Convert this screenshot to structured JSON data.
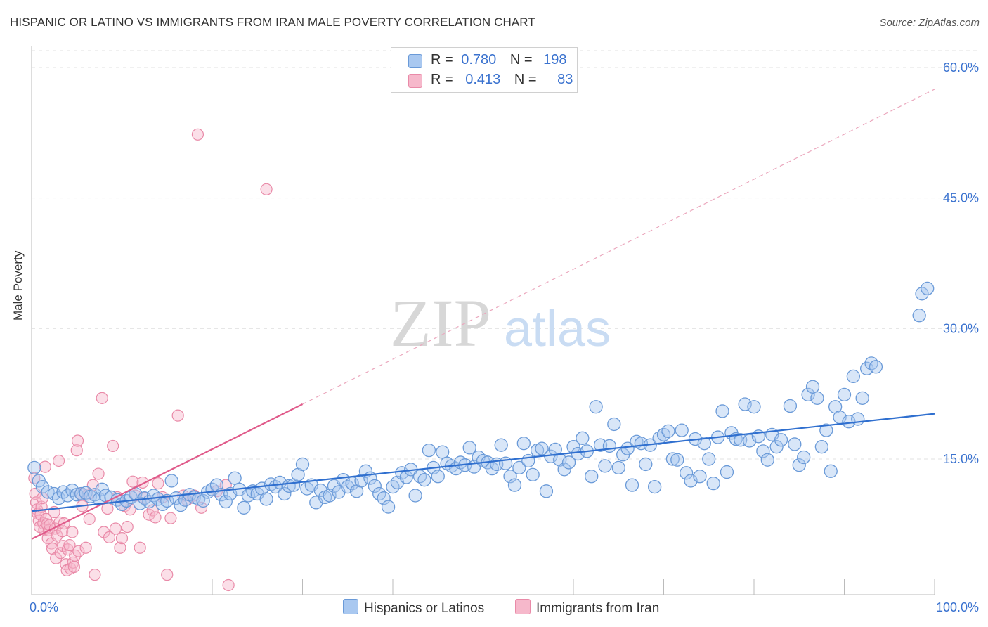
{
  "title": "HISPANIC OR LATINO VS IMMIGRANTS FROM IRAN MALE POVERTY CORRELATION CHART",
  "source": "Source: ZipAtlas.com",
  "watermark": {
    "zip": "ZIP",
    "atlas": "atlas"
  },
  "colors": {
    "blue_fill": "#a9c8f0",
    "blue_stroke": "#6a9ad8",
    "blue_line": "#2f6fcf",
    "pink_fill": "#f6b8cb",
    "pink_stroke": "#e98aa8",
    "pink_line": "#e05a8a",
    "axis_label": "#3a72cf",
    "grid": "#e2e2e2"
  },
  "legend": {
    "rows": [
      {
        "r_label": "R =",
        "r_value": "0.780",
        "n_label": "N =",
        "n_value": "198"
      },
      {
        "r_label": "R =",
        "r_value": "0.413",
        "n_label": "N =",
        "n_value": "83"
      }
    ]
  },
  "chart_data": {
    "type": "scatter",
    "title": "HISPANIC OR LATINO VS IMMIGRANTS FROM IRAN MALE POVERTY CORRELATION CHART",
    "xlabel": "",
    "ylabel": "Male Poverty",
    "xlim": [
      0,
      100
    ],
    "ylim": [
      0,
      62
    ],
    "x_tick_labels": [
      "0.0%",
      "100.0%"
    ],
    "y_ticks": [
      15,
      30,
      45,
      60
    ],
    "y_tick_labels": [
      "15.0%",
      "30.0%",
      "45.0%",
      "60.0%"
    ],
    "legend_position": "top-center",
    "series": [
      {
        "name": "Hispanics or Latinos",
        "r": 0.78,
        "n": 198,
        "trend": {
          "x": [
            0,
            100
          ],
          "y": [
            9.0,
            20.2
          ]
        },
        "points": [
          [
            0.3,
            14.0
          ],
          [
            0.8,
            12.5
          ],
          [
            1.2,
            11.8
          ],
          [
            1.8,
            11.2
          ],
          [
            2.5,
            11.0
          ],
          [
            3.0,
            10.5
          ],
          [
            3.5,
            11.2
          ],
          [
            4.0,
            10.8
          ],
          [
            4.5,
            11.4
          ],
          [
            5.0,
            10.9
          ],
          [
            5.5,
            11.0
          ],
          [
            6.0,
            11.1
          ],
          [
            6.5,
            10.7
          ],
          [
            7.0,
            10.9
          ],
          [
            7.5,
            10.4
          ],
          [
            7.8,
            11.5
          ],
          [
            8.2,
            10.8
          ],
          [
            8.8,
            10.6
          ],
          [
            9.5,
            10.3
          ],
          [
            10.0,
            9.8
          ],
          [
            10.5,
            10.2
          ],
          [
            11.0,
            10.6
          ],
          [
            11.5,
            11.0
          ],
          [
            12.0,
            9.9
          ],
          [
            12.5,
            10.5
          ],
          [
            13.0,
            10.1
          ],
          [
            13.5,
            10.8
          ],
          [
            14.0,
            10.4
          ],
          [
            14.5,
            9.8
          ],
          [
            15.0,
            10.2
          ],
          [
            15.5,
            12.5
          ],
          [
            16.0,
            10.5
          ],
          [
            16.5,
            9.7
          ],
          [
            17.0,
            10.3
          ],
          [
            17.5,
            10.9
          ],
          [
            18.0,
            10.6
          ],
          [
            18.5,
            10.4
          ],
          [
            19.0,
            10.2
          ],
          [
            19.5,
            11.2
          ],
          [
            20.0,
            11.5
          ],
          [
            20.5,
            12.0
          ],
          [
            21.0,
            10.9
          ],
          [
            21.5,
            10.1
          ],
          [
            22.0,
            11.0
          ],
          [
            22.5,
            12.8
          ],
          [
            23.0,
            11.5
          ],
          [
            23.5,
            9.4
          ],
          [
            24.0,
            10.8
          ],
          [
            24.5,
            11.3
          ],
          [
            25.0,
            11.0
          ],
          [
            25.5,
            11.6
          ],
          [
            26.0,
            10.4
          ],
          [
            26.5,
            12.1
          ],
          [
            27.0,
            11.8
          ],
          [
            27.5,
            12.3
          ],
          [
            28.0,
            11.0
          ],
          [
            28.5,
            11.9
          ],
          [
            29.0,
            12.0
          ],
          [
            29.5,
            13.2
          ],
          [
            30.0,
            14.4
          ],
          [
            30.5,
            11.6
          ],
          [
            31.0,
            12.0
          ],
          [
            31.5,
            10.0
          ],
          [
            32.0,
            11.4
          ],
          [
            32.5,
            10.6
          ],
          [
            33.0,
            10.8
          ],
          [
            33.5,
            11.9
          ],
          [
            34.0,
            11.2
          ],
          [
            34.5,
            12.6
          ],
          [
            35.0,
            11.8
          ],
          [
            35.5,
            12.2
          ],
          [
            36.0,
            11.3
          ],
          [
            36.5,
            12.5
          ],
          [
            37.0,
            13.6
          ],
          [
            37.5,
            12.8
          ],
          [
            38.0,
            11.9
          ],
          [
            38.5,
            11.0
          ],
          [
            39.0,
            10.5
          ],
          [
            39.5,
            9.5
          ],
          [
            40.0,
            11.8
          ],
          [
            40.5,
            12.3
          ],
          [
            41.0,
            13.4
          ],
          [
            41.5,
            12.9
          ],
          [
            42.0,
            13.8
          ],
          [
            42.5,
            10.8
          ],
          [
            43.0,
            13.0
          ],
          [
            43.5,
            12.6
          ],
          [
            44.0,
            16.0
          ],
          [
            44.5,
            14.0
          ],
          [
            45.0,
            13.0
          ],
          [
            45.5,
            15.8
          ],
          [
            46.0,
            14.5
          ],
          [
            46.5,
            14.2
          ],
          [
            47.0,
            13.9
          ],
          [
            47.5,
            14.6
          ],
          [
            48.0,
            14.3
          ],
          [
            48.5,
            16.3
          ],
          [
            49.0,
            14.1
          ],
          [
            49.5,
            15.2
          ],
          [
            50.0,
            14.8
          ],
          [
            50.5,
            14.6
          ],
          [
            51.0,
            13.9
          ],
          [
            51.5,
            14.4
          ],
          [
            52.0,
            16.6
          ],
          [
            52.5,
            14.5
          ],
          [
            53.0,
            13.0
          ],
          [
            53.5,
            12.0
          ],
          [
            54.0,
            14.0
          ],
          [
            54.5,
            16.8
          ],
          [
            55.0,
            14.8
          ],
          [
            55.5,
            13.2
          ],
          [
            56.0,
            16.0
          ],
          [
            56.5,
            16.2
          ],
          [
            57.0,
            11.3
          ],
          [
            57.5,
            15.3
          ],
          [
            58.0,
            16.1
          ],
          [
            58.5,
            14.9
          ],
          [
            59.0,
            13.8
          ],
          [
            59.5,
            14.6
          ],
          [
            60.0,
            16.4
          ],
          [
            60.5,
            15.6
          ],
          [
            61.0,
            17.4
          ],
          [
            61.5,
            15.9
          ],
          [
            62.0,
            13.0
          ],
          [
            62.5,
            21.0
          ],
          [
            63.0,
            16.6
          ],
          [
            63.5,
            14.2
          ],
          [
            64.0,
            16.5
          ],
          [
            64.5,
            19.0
          ],
          [
            65.0,
            14.0
          ],
          [
            65.5,
            15.5
          ],
          [
            66.0,
            16.2
          ],
          [
            66.5,
            12.0
          ],
          [
            67.0,
            17.0
          ],
          [
            67.5,
            16.8
          ],
          [
            68.0,
            14.4
          ],
          [
            68.5,
            16.6
          ],
          [
            69.0,
            11.8
          ],
          [
            69.5,
            17.4
          ],
          [
            70.0,
            17.8
          ],
          [
            70.5,
            18.2
          ],
          [
            71.0,
            15.0
          ],
          [
            71.5,
            14.9
          ],
          [
            72.0,
            18.3
          ],
          [
            72.5,
            13.4
          ],
          [
            73.0,
            12.5
          ],
          [
            73.5,
            17.3
          ],
          [
            74.0,
            13.0
          ],
          [
            74.5,
            16.8
          ],
          [
            75.0,
            15.0
          ],
          [
            75.5,
            12.2
          ],
          [
            76.0,
            17.5
          ],
          [
            76.5,
            20.5
          ],
          [
            77.0,
            13.5
          ],
          [
            77.5,
            18.0
          ],
          [
            78.0,
            17.3
          ],
          [
            78.5,
            17.2
          ],
          [
            79.0,
            21.3
          ],
          [
            79.5,
            17.1
          ],
          [
            80.0,
            21.0
          ],
          [
            80.5,
            17.6
          ],
          [
            81.0,
            15.9
          ],
          [
            81.5,
            14.9
          ],
          [
            82.0,
            17.8
          ],
          [
            82.5,
            16.4
          ],
          [
            83.0,
            17.2
          ],
          [
            84.0,
            21.1
          ],
          [
            84.5,
            16.7
          ],
          [
            85.0,
            14.3
          ],
          [
            85.5,
            15.2
          ],
          [
            86.0,
            22.4
          ],
          [
            86.5,
            23.3
          ],
          [
            87.0,
            22.0
          ],
          [
            87.5,
            16.4
          ],
          [
            88.0,
            18.3
          ],
          [
            88.5,
            13.6
          ],
          [
            89.0,
            21.0
          ],
          [
            89.5,
            19.8
          ],
          [
            90.0,
            22.4
          ],
          [
            90.5,
            19.3
          ],
          [
            91.0,
            24.5
          ],
          [
            91.5,
            19.6
          ],
          [
            92.0,
            22.0
          ],
          [
            92.5,
            25.4
          ],
          [
            93.0,
            26.0
          ],
          [
            93.5,
            25.6
          ],
          [
            98.3,
            31.5
          ],
          [
            98.6,
            34.0
          ],
          [
            99.2,
            34.6
          ]
        ]
      },
      {
        "name": "Immigrants from Iran",
        "r": 0.413,
        "n": 83,
        "trend": {
          "x": [
            0,
            30
          ],
          "y": [
            5.8,
            21.3
          ]
        },
        "trend_extension": {
          "x": [
            30,
            100
          ],
          "y": [
            21.3,
            57.5
          ]
        },
        "points": [
          [
            0.3,
            12.8
          ],
          [
            0.4,
            11.0
          ],
          [
            0.5,
            10.0
          ],
          [
            0.6,
            9.2
          ],
          [
            0.7,
            8.7
          ],
          [
            0.8,
            7.9
          ],
          [
            0.9,
            7.2
          ],
          [
            1.0,
            8.6
          ],
          [
            1.1,
            9.5
          ],
          [
            1.2,
            10.5
          ],
          [
            1.3,
            7.6
          ],
          [
            1.4,
            6.9
          ],
          [
            1.5,
            14.1
          ],
          [
            1.6,
            8.1
          ],
          [
            1.7,
            7.5
          ],
          [
            1.8,
            5.9
          ],
          [
            1.9,
            6.8
          ],
          [
            2.0,
            7.4
          ],
          [
            2.2,
            5.3
          ],
          [
            2.3,
            4.7
          ],
          [
            2.5,
            8.9
          ],
          [
            2.6,
            7.0
          ],
          [
            2.7,
            3.6
          ],
          [
            2.8,
            6.2
          ],
          [
            3.0,
            14.8
          ],
          [
            3.1,
            7.7
          ],
          [
            3.2,
            4.2
          ],
          [
            3.4,
            6.7
          ],
          [
            3.5,
            5.0
          ],
          [
            3.6,
            7.6
          ],
          [
            3.8,
            2.9
          ],
          [
            3.9,
            2.2
          ],
          [
            4.0,
            4.6
          ],
          [
            4.2,
            5.1
          ],
          [
            4.3,
            2.4
          ],
          [
            4.5,
            6.6
          ],
          [
            4.6,
            3.1
          ],
          [
            4.7,
            2.6
          ],
          [
            4.8,
            3.9
          ],
          [
            5.0,
            16.0
          ],
          [
            5.1,
            17.1
          ],
          [
            5.2,
            4.4
          ],
          [
            5.4,
            11.0
          ],
          [
            5.6,
            9.6
          ],
          [
            6.0,
            4.8
          ],
          [
            6.2,
            10.9
          ],
          [
            6.4,
            8.1
          ],
          [
            6.8,
            12.0
          ],
          [
            7.0,
            1.7
          ],
          [
            7.4,
            13.3
          ],
          [
            7.8,
            22.0
          ],
          [
            8.0,
            6.6
          ],
          [
            8.4,
            9.3
          ],
          [
            8.6,
            6.0
          ],
          [
            9.0,
            16.5
          ],
          [
            9.3,
            7.0
          ],
          [
            9.5,
            10.6
          ],
          [
            9.8,
            4.8
          ],
          [
            10.0,
            5.9
          ],
          [
            10.3,
            9.6
          ],
          [
            10.6,
            7.2
          ],
          [
            10.9,
            9.2
          ],
          [
            11.2,
            12.4
          ],
          [
            11.5,
            10.8
          ],
          [
            12.0,
            4.8
          ],
          [
            12.3,
            12.3
          ],
          [
            12.6,
            10.5
          ],
          [
            13.0,
            8.6
          ],
          [
            13.4,
            9.1
          ],
          [
            13.7,
            8.3
          ],
          [
            14.0,
            12.2
          ],
          [
            14.5,
            10.6
          ],
          [
            15.0,
            1.7
          ],
          [
            15.4,
            8.2
          ],
          [
            16.2,
            20.0
          ],
          [
            16.8,
            10.8
          ],
          [
            17.2,
            10.3
          ],
          [
            18.0,
            10.8
          ],
          [
            18.4,
            52.3
          ],
          [
            18.8,
            9.4
          ],
          [
            20.5,
            11.3
          ],
          [
            21.5,
            12.0
          ],
          [
            21.8,
            0.5
          ],
          [
            26.0,
            46.0
          ]
        ]
      }
    ]
  },
  "bottom_legend": [
    "Hispanics or Latinos",
    "Immigrants from Iran"
  ]
}
